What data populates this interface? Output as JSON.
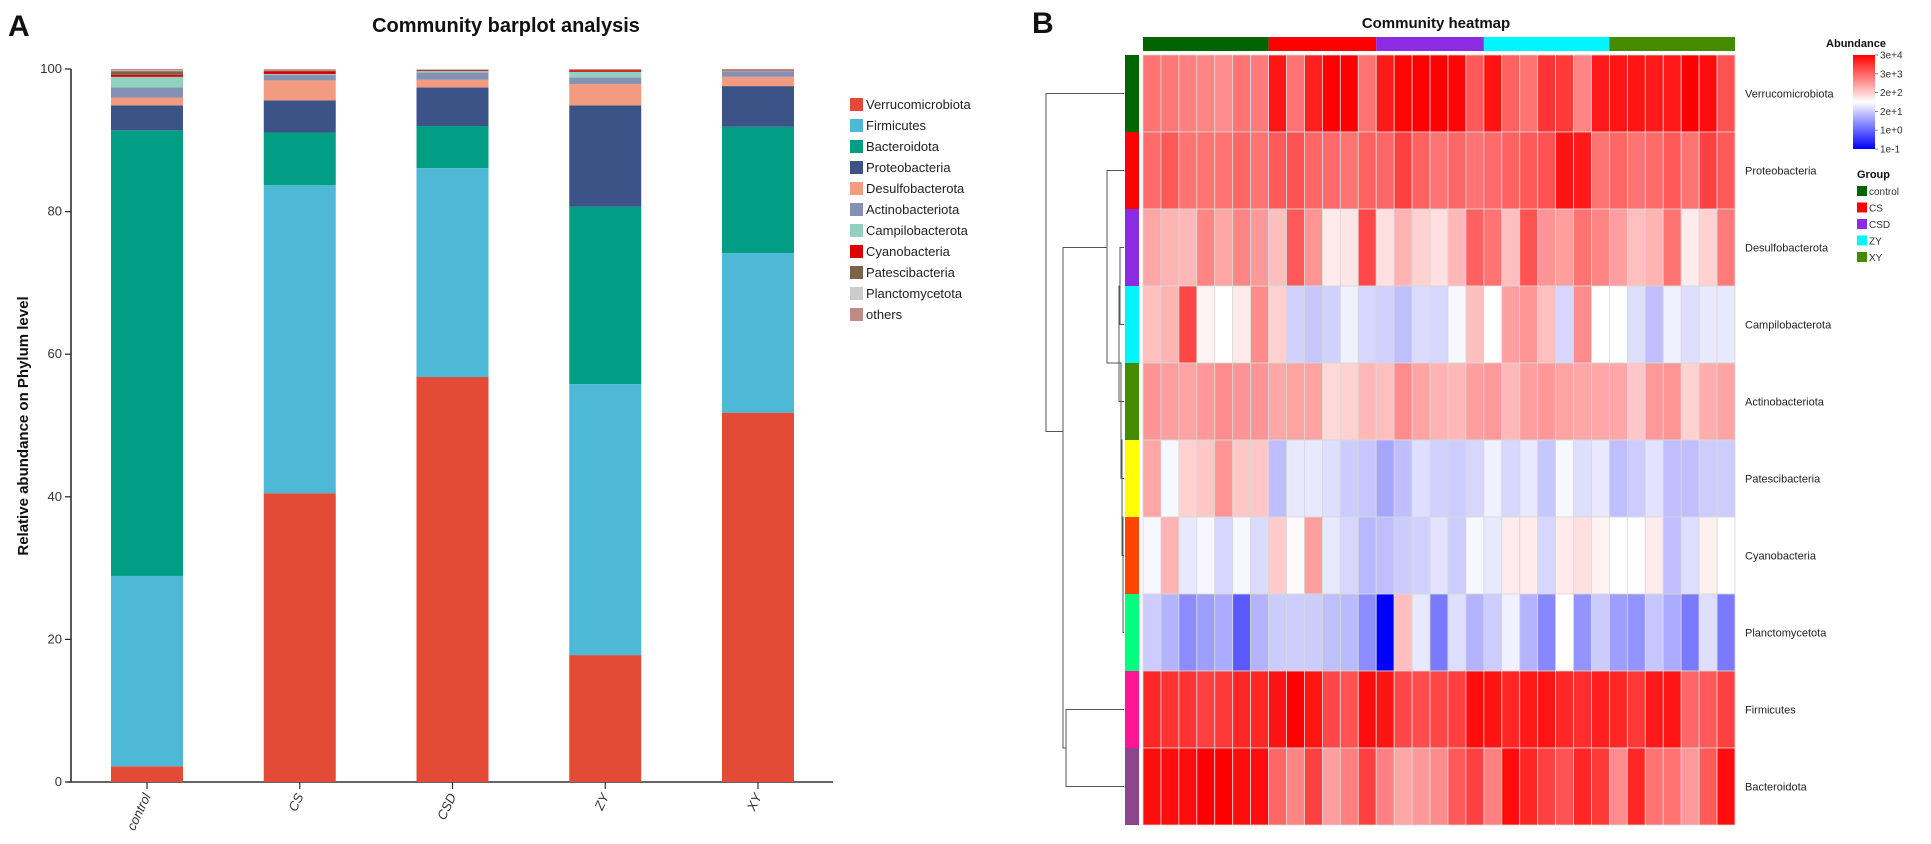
{
  "panels": {
    "a_label": "A",
    "b_label": "B"
  },
  "chart_data": [
    {
      "type": "bar",
      "stacked": true,
      "title": "Community barplot analysis",
      "xlabel": "",
      "ylabel": "Relative abundance on Phylum level",
      "ylim": [
        0,
        100
      ],
      "yticks": [
        0,
        20,
        40,
        60,
        80,
        100
      ],
      "categories": [
        "control",
        "CS",
        "CSD",
        "ZY",
        "XY"
      ],
      "legend_position": "right",
      "series": [
        {
          "name": "Verrucomicrobiota",
          "color": "#E34B36",
          "values": [
            2.2,
            40.5,
            56.8,
            17.8,
            51.8
          ]
        },
        {
          "name": "Firmicutes",
          "color": "#4DB9D6",
          "values": [
            26.7,
            43.2,
            29.3,
            38.0,
            22.4
          ]
        },
        {
          "name": "Bacteroidota",
          "color": "#019E84",
          "values": [
            62.5,
            7.4,
            5.9,
            24.9,
            17.7
          ]
        },
        {
          "name": "Proteobacteria",
          "color": "#3C5388",
          "values": [
            3.5,
            4.5,
            5.4,
            14.2,
            5.7
          ]
        },
        {
          "name": "Desulfobacterota",
          "color": "#F29B80",
          "values": [
            1.1,
            2.8,
            1.1,
            3.0,
            1.3
          ]
        },
        {
          "name": "Actinobacteriota",
          "color": "#8491B4",
          "values": [
            1.4,
            0.8,
            1.0,
            0.9,
            0.8
          ]
        },
        {
          "name": "Campilobacterota",
          "color": "#91D1C2",
          "values": [
            1.5,
            0.1,
            0.2,
            0.8,
            0.1
          ]
        },
        {
          "name": "Cyanobacteria",
          "color": "#DC0000",
          "values": [
            0.3,
            0.4,
            0.1,
            0.2,
            0.1
          ]
        },
        {
          "name": "Patescibacteria",
          "color": "#7E6148",
          "values": [
            0.5,
            0.1,
            0.1,
            0.1,
            0.0
          ]
        },
        {
          "name": "Planctomycetota",
          "color": "#CCCCCC",
          "values": [
            0.1,
            0.1,
            0.1,
            0.0,
            0.0
          ]
        },
        {
          "name": "others",
          "color": "#C08A85",
          "values": [
            0.2,
            0.1,
            0.0,
            0.1,
            0.1
          ]
        }
      ]
    },
    {
      "type": "heatmap",
      "title": "Community heatmap",
      "rows": [
        "Verrucomicrobiota",
        "Proteobacteria",
        "Desulfobacterota",
        "Campilobacterota",
        "Actinobacteriota",
        "Patescibacteria",
        "Cyanobacteria",
        "Planctomycetota",
        "Firmicutes",
        "Bacteroidota"
      ],
      "row_colors": [
        "#006400",
        "#FF0000",
        "#8B2BE2",
        "#00F5FF",
        "#458B00",
        "#FFFF00",
        "#FF4500",
        "#00FF7F",
        "#FF1493",
        "#8B4789"
      ],
      "groups": [
        {
          "name": "control",
          "color": "#006400",
          "n": 7
        },
        {
          "name": "CS",
          "color": "#FF0000",
          "n": 6
        },
        {
          "name": "CSD",
          "color": "#8B2BE2",
          "n": 6
        },
        {
          "name": "ZY",
          "color": "#00F5FF",
          "n": 7
        },
        {
          "name": "XY",
          "color": "#458B00",
          "n": 7
        }
      ],
      "color_scale": {
        "title": "Abundance",
        "scale": "log",
        "low_color": "#0000FF",
        "mid_color": "#FFFFFF",
        "high_color": "#FF0000",
        "tick_labels": [
          "3e+4",
          "3e+3",
          "2e+2",
          "2e+1",
          "1e+0",
          "1e-1"
        ]
      },
      "group_legend_title": "Group",
      "values_scaled": [
        [
          0.55,
          0.53,
          0.5,
          0.48,
          0.45,
          0.55,
          0.52,
          0.92,
          0.55,
          0.88,
          1.0,
          1.0,
          0.55,
          0.9,
          0.98,
          1.0,
          1.0,
          0.98,
          0.65,
          0.93,
          0.62,
          0.55,
          0.8,
          0.78,
          0.48,
          0.9,
          0.92,
          0.92,
          0.9,
          0.9,
          1.0,
          0.95,
          0.68
        ],
        [
          0.58,
          0.65,
          0.55,
          0.55,
          0.55,
          0.6,
          0.55,
          0.65,
          0.68,
          0.6,
          0.58,
          0.55,
          0.62,
          0.6,
          0.75,
          0.62,
          0.55,
          0.6,
          0.55,
          0.58,
          0.62,
          0.65,
          0.68,
          0.92,
          0.9,
          0.55,
          0.6,
          0.55,
          0.58,
          0.65,
          0.55,
          0.75,
          0.65
        ],
        [
          0.35,
          0.3,
          0.28,
          0.48,
          0.35,
          0.48,
          0.4,
          0.25,
          0.65,
          0.42,
          0.08,
          0.1,
          0.72,
          0.12,
          0.3,
          0.18,
          0.12,
          0.28,
          0.62,
          0.55,
          0.25,
          0.68,
          0.42,
          0.38,
          0.55,
          0.48,
          0.38,
          0.25,
          0.3,
          0.55,
          0.08,
          0.18,
          0.52
        ],
        [
          0.25,
          0.3,
          0.72,
          0.05,
          0.0,
          0.08,
          0.45,
          0.18,
          -0.18,
          -0.22,
          -0.18,
          -0.06,
          -0.16,
          -0.18,
          -0.25,
          -0.14,
          -0.16,
          -0.03,
          0.25,
          0.0,
          0.38,
          0.42,
          0.25,
          -0.16,
          0.45,
          0.0,
          0.0,
          -0.13,
          -0.25,
          -0.06,
          -0.13,
          -0.09,
          -0.09
        ],
        [
          0.42,
          0.38,
          0.36,
          0.4,
          0.45,
          0.42,
          0.42,
          0.35,
          0.36,
          0.36,
          0.15,
          0.18,
          0.28,
          0.25,
          0.45,
          0.36,
          0.3,
          0.28,
          0.38,
          0.4,
          0.28,
          0.38,
          0.4,
          0.36,
          0.35,
          0.35,
          0.35,
          0.22,
          0.4,
          0.42,
          0.18,
          0.32,
          0.36
        ],
        [
          0.35,
          -0.03,
          0.18,
          0.22,
          0.42,
          0.22,
          0.22,
          -0.25,
          -0.09,
          -0.09,
          -0.13,
          -0.2,
          -0.22,
          -0.35,
          -0.25,
          -0.13,
          -0.18,
          -0.2,
          -0.16,
          -0.06,
          -0.16,
          -0.09,
          -0.22,
          -0.03,
          -0.13,
          -0.09,
          -0.25,
          -0.2,
          -0.11,
          -0.25,
          -0.25,
          -0.2,
          -0.2
        ],
        [
          -0.03,
          0.3,
          -0.09,
          -0.03,
          -0.16,
          -0.03,
          -0.14,
          0.2,
          0.02,
          0.38,
          -0.09,
          -0.16,
          -0.28,
          -0.25,
          -0.2,
          -0.18,
          -0.11,
          -0.2,
          -0.03,
          -0.09,
          0.08,
          0.08,
          -0.16,
          0.08,
          0.12,
          0.05,
          0.0,
          0.0,
          0.08,
          -0.25,
          -0.13,
          0.06,
          0.0
        ],
        [
          -0.2,
          -0.3,
          -0.45,
          -0.38,
          -0.33,
          -0.65,
          -0.3,
          -0.2,
          -0.2,
          -0.2,
          -0.25,
          -0.27,
          -0.45,
          -1.0,
          0.25,
          -0.09,
          -0.52,
          -0.13,
          -0.3,
          -0.2,
          -0.06,
          -0.3,
          -0.47,
          0.0,
          -0.42,
          -0.2,
          -0.38,
          -0.42,
          -0.22,
          -0.33,
          -0.52,
          -0.13,
          -0.52
        ],
        [
          0.85,
          0.8,
          0.8,
          0.75,
          0.78,
          0.85,
          0.85,
          0.92,
          1.0,
          0.92,
          0.72,
          0.68,
          0.95,
          0.92,
          0.72,
          0.7,
          0.72,
          0.75,
          0.95,
          0.92,
          0.85,
          0.9,
          0.92,
          0.85,
          0.82,
          0.88,
          0.85,
          0.78,
          0.9,
          0.92,
          0.6,
          0.65,
          0.75
        ],
        [
          0.95,
          0.95,
          0.95,
          1.0,
          1.0,
          0.95,
          0.95,
          0.6,
          0.48,
          0.75,
          0.38,
          0.5,
          0.75,
          0.5,
          0.35,
          0.4,
          0.45,
          0.65,
          0.75,
          0.5,
          0.95,
          0.85,
          0.75,
          0.68,
          0.85,
          0.78,
          0.45,
          0.85,
          0.55,
          0.55,
          0.4,
          0.65,
          0.95
        ]
      ]
    }
  ]
}
